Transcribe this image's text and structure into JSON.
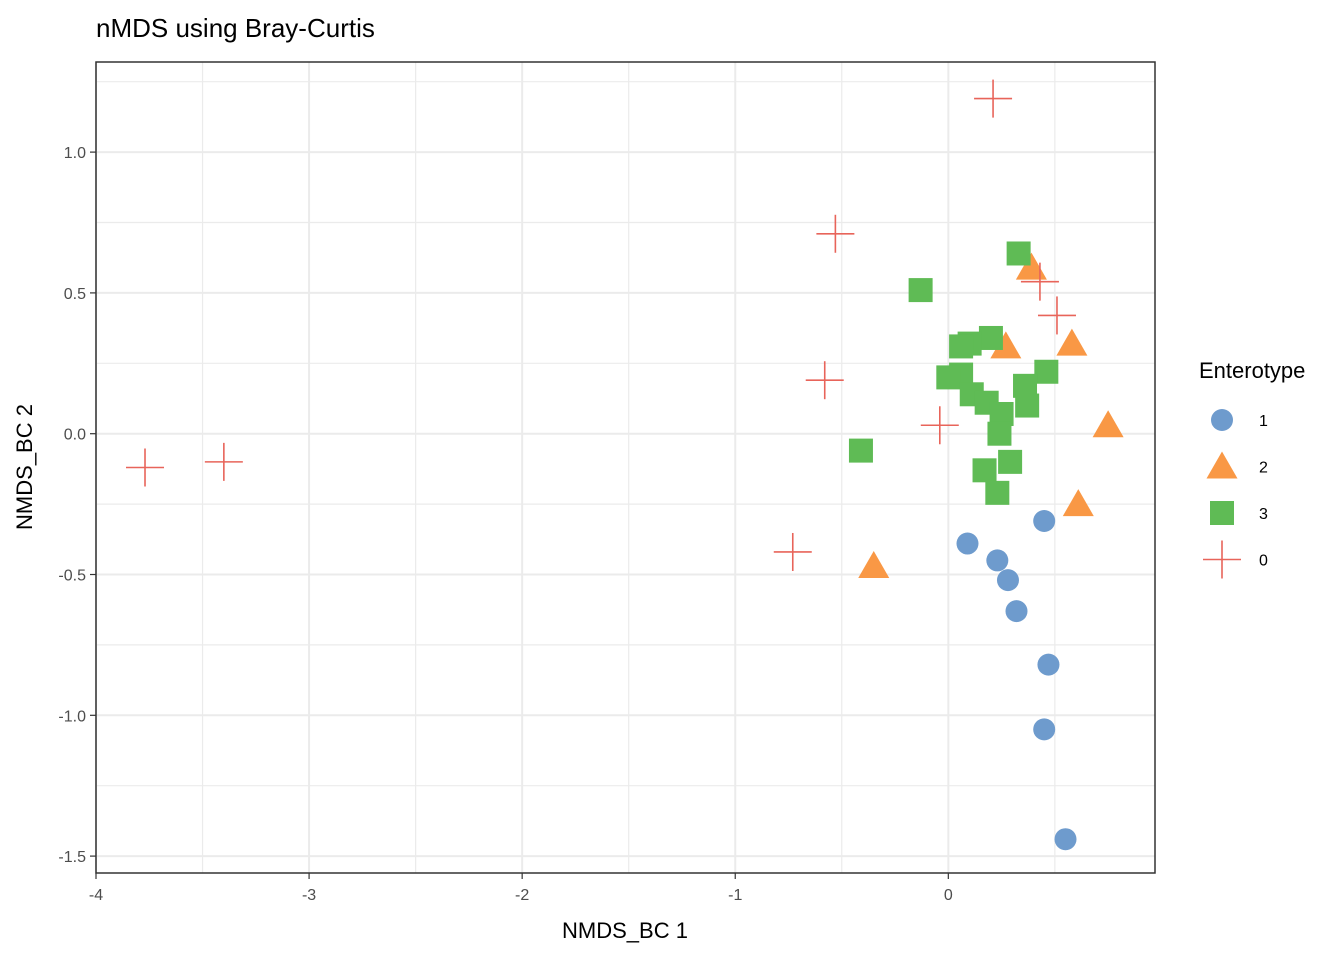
{
  "chart_data": {
    "type": "scatter",
    "title": "nMDS using Bray-Curtis",
    "xlabel": "NMDS_BC 1",
    "ylabel": "NMDS_BC 2",
    "xlim": [
      -4.0,
      0.97
    ],
    "ylim": [
      -1.56,
      1.32
    ],
    "xticks": [
      -4,
      -3,
      -2,
      -1,
      0
    ],
    "xtick_labels": [
      "-4",
      "-3",
      "-2",
      "-1",
      "0"
    ],
    "yticks": [
      -1.5,
      -1.0,
      -0.5,
      0.0,
      0.5,
      1.0
    ],
    "ytick_labels": [
      "-1.5",
      "-1.0",
      "-0.5",
      "0.0",
      "0.5",
      "1.0"
    ],
    "grid": true,
    "legend": {
      "title": "Enterotype",
      "position": "right"
    },
    "series": [
      {
        "name": "1",
        "marker": "circle",
        "color": "#6E9BCD",
        "points": [
          {
            "x": 0.45,
            "y": -0.31
          },
          {
            "x": 0.09,
            "y": -0.39
          },
          {
            "x": 0.23,
            "y": -0.45
          },
          {
            "x": 0.28,
            "y": -0.52
          },
          {
            "x": 0.32,
            "y": -0.63
          },
          {
            "x": 0.47,
            "y": -0.82
          },
          {
            "x": 0.45,
            "y": -1.05
          },
          {
            "x": 0.55,
            "y": -1.44
          }
        ]
      },
      {
        "name": "2",
        "marker": "triangle",
        "color": "#F99845",
        "points": [
          {
            "x": 0.39,
            "y": 0.59
          },
          {
            "x": 0.27,
            "y": 0.31
          },
          {
            "x": 0.58,
            "y": 0.32
          },
          {
            "x": 0.75,
            "y": 0.03
          },
          {
            "x": 0.61,
            "y": -0.25
          },
          {
            "x": -0.35,
            "y": -0.47
          }
        ]
      },
      {
        "name": "3",
        "marker": "square",
        "color": "#5FBB55",
        "points": [
          {
            "x": 0.33,
            "y": 0.64
          },
          {
            "x": -0.13,
            "y": 0.51
          },
          {
            "x": 0.2,
            "y": 0.34
          },
          {
            "x": 0.1,
            "y": 0.32
          },
          {
            "x": 0.06,
            "y": 0.31
          },
          {
            "x": 0.46,
            "y": 0.22
          },
          {
            "x": 0.06,
            "y": 0.21
          },
          {
            "x": 0.0,
            "y": 0.2
          },
          {
            "x": 0.36,
            "y": 0.17
          },
          {
            "x": 0.11,
            "y": 0.14
          },
          {
            "x": 0.18,
            "y": 0.11
          },
          {
            "x": 0.37,
            "y": 0.1
          },
          {
            "x": 0.25,
            "y": 0.07
          },
          {
            "x": 0.24,
            "y": 0.0
          },
          {
            "x": -0.41,
            "y": -0.06
          },
          {
            "x": 0.29,
            "y": -0.1
          },
          {
            "x": 0.17,
            "y": -0.13
          },
          {
            "x": 0.23,
            "y": -0.21
          }
        ]
      },
      {
        "name": "0",
        "marker": "cross",
        "color": "#E8645A",
        "points": [
          {
            "x": 0.21,
            "y": 1.19
          },
          {
            "x": -0.53,
            "y": 0.71
          },
          {
            "x": 0.43,
            "y": 0.54
          },
          {
            "x": 0.51,
            "y": 0.42
          },
          {
            "x": -0.58,
            "y": 0.19
          },
          {
            "x": -0.04,
            "y": 0.03
          },
          {
            "x": -3.4,
            "y": -0.1
          },
          {
            "x": -3.77,
            "y": -0.12
          },
          {
            "x": -0.73,
            "y": -0.42
          }
        ]
      }
    ]
  }
}
